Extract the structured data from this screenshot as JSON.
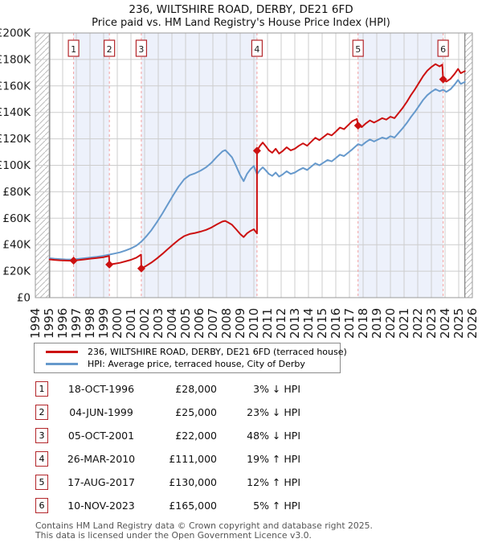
{
  "title": "236, WILTSHIRE ROAD, DERBY, DE21 6FD",
  "subtitle": "Price paid vs. HM Land Registry's House Price Index (HPI)",
  "legend": [
    {
      "label": "236, WILTSHIRE ROAD, DERBY, DE21 6FD (terraced house)",
      "color": "#cc1111"
    },
    {
      "label": "HPI: Average price, terraced house, City of Derby",
      "color": "#6699cc"
    }
  ],
  "sales": [
    {
      "n": "1",
      "date": "18-OCT-1996",
      "price": "£28,000",
      "vs_hpi": "3% ↓ HPI",
      "year": 1996.8,
      "price_k": 28
    },
    {
      "n": "2",
      "date": "04-JUN-1999",
      "price": "£25,000",
      "vs_hpi": "23% ↓ HPI",
      "year": 1999.42,
      "price_k": 25
    },
    {
      "n": "3",
      "date": "05-OCT-2001",
      "price": "£22,000",
      "vs_hpi": "48% ↓ HPI",
      "year": 2001.76,
      "price_k": 22
    },
    {
      "n": "4",
      "date": "26-MAR-2010",
      "price": "£111,000",
      "vs_hpi": "19% ↑ HPI",
      "year": 2010.23,
      "price_k": 111
    },
    {
      "n": "5",
      "date": "17-AUG-2017",
      "price": "£130,000",
      "vs_hpi": "12% ↑ HPI",
      "year": 2017.63,
      "price_k": 130
    },
    {
      "n": "6",
      "date": "10-NOV-2023",
      "price": "£165,000",
      "vs_hpi": "5% ↑ HPI",
      "year": 2023.86,
      "price_k": 165
    }
  ],
  "footer": {
    "line1": "Contains HM Land Registry data © Crown copyright and database right 2025.",
    "line2": "This data is licensed under the Open Government Licence v3.0."
  },
  "chart_data": {
    "type": "line",
    "title": "236, WILTSHIRE ROAD, DERBY, DE21 6FD",
    "subtitle": "Price paid vs. HM Land Registry's House Price Index (HPI)",
    "x_axis": {
      "min": 1994,
      "max": 2026,
      "tick_years": [
        1994,
        1995,
        1996,
        1997,
        1998,
        1999,
        2000,
        2001,
        2002,
        2003,
        2004,
        2005,
        2006,
        2007,
        2008,
        2009,
        2010,
        2011,
        2012,
        2013,
        2014,
        2015,
        2016,
        2017,
        2018,
        2019,
        2020,
        2021,
        2022,
        2023,
        2024,
        2025,
        2026
      ]
    },
    "y_axis": {
      "min_gbp": 0,
      "max_gbp": 200000,
      "tick_step_k": 20,
      "tick_labels": [
        "£0",
        "£20K",
        "£40K",
        "£60K",
        "£80K",
        "£100K",
        "£120K",
        "£140K",
        "£160K",
        "£180K",
        "£200K"
      ]
    },
    "grid": true,
    "legend_position": "below",
    "band_color": "#edf1fb",
    "grid_color": "#cdcdcd",
    "border_color": "#9a9a9a",
    "sale_line_color": "#f2a0a0",
    "sale_marker_color": "#cc1111",
    "shaded_periods": [
      [
        1996.8,
        1999.42
      ],
      [
        2001.76,
        2010.23
      ],
      [
        2017.63,
        2023.86
      ]
    ],
    "no_data_hatch": [
      [
        1994,
        1995.05
      ],
      [
        2025.45,
        2026
      ]
    ],
    "units": "points are [decimal_year, price_in_thousands_gbp]",
    "series": [
      {
        "name": "236, WILTSHIRE ROAD, DERBY, DE21 6FD (terraced house)",
        "color": "#cc1111",
        "points_year_gbp_k": [
          [
            1995.05,
            28.9
          ],
          [
            1995.4,
            28.5
          ],
          [
            1995.8,
            28.2
          ],
          [
            1996.2,
            28.0
          ],
          [
            1996.6,
            27.9
          ],
          [
            1996.8,
            28.0
          ],
          [
            1997.2,
            28.4
          ],
          [
            1997.6,
            28.9
          ],
          [
            1998.0,
            29.4
          ],
          [
            1998.5,
            29.9
          ],
          [
            1999.0,
            30.6
          ],
          [
            1999.4,
            31.5
          ],
          [
            1999.42,
            25.0
          ],
          [
            1999.8,
            25.6
          ],
          [
            2000.2,
            26.3
          ],
          [
            2000.6,
            27.4
          ],
          [
            2001.0,
            28.6
          ],
          [
            2001.4,
            30.2
          ],
          [
            2001.74,
            32.5
          ],
          [
            2001.76,
            22.0
          ],
          [
            2002.1,
            23.9
          ],
          [
            2002.5,
            26.5
          ],
          [
            2002.9,
            29.6
          ],
          [
            2003.3,
            33.0
          ],
          [
            2003.7,
            36.7
          ],
          [
            2004.1,
            40.3
          ],
          [
            2004.5,
            43.7
          ],
          [
            2004.9,
            46.5
          ],
          [
            2005.3,
            48.1
          ],
          [
            2005.7,
            48.9
          ],
          [
            2006.1,
            49.9
          ],
          [
            2006.5,
            51.2
          ],
          [
            2006.9,
            53.0
          ],
          [
            2007.3,
            55.4
          ],
          [
            2007.7,
            57.5
          ],
          [
            2007.9,
            58.0
          ],
          [
            2008.1,
            56.9
          ],
          [
            2008.4,
            55.1
          ],
          [
            2008.7,
            51.7
          ],
          [
            2009.0,
            48.1
          ],
          [
            2009.25,
            45.8
          ],
          [
            2009.5,
            48.6
          ],
          [
            2009.75,
            50.4
          ],
          [
            2010.0,
            51.7
          ],
          [
            2010.23,
            48.5
          ],
          [
            2010.23,
            111.0
          ],
          [
            2010.45,
            114.8
          ],
          [
            2010.65,
            117.2
          ],
          [
            2010.85,
            114.8
          ],
          [
            2011.1,
            111.3
          ],
          [
            2011.35,
            109.5
          ],
          [
            2011.6,
            112.5
          ],
          [
            2011.85,
            108.9
          ],
          [
            2012.1,
            110.7
          ],
          [
            2012.4,
            113.6
          ],
          [
            2012.7,
            111.3
          ],
          [
            2013.0,
            112.5
          ],
          [
            2013.3,
            114.8
          ],
          [
            2013.6,
            116.6
          ],
          [
            2013.9,
            114.8
          ],
          [
            2014.2,
            117.8
          ],
          [
            2014.5,
            120.8
          ],
          [
            2014.8,
            119.0
          ],
          [
            2015.1,
            121.4
          ],
          [
            2015.4,
            123.8
          ],
          [
            2015.7,
            122.6
          ],
          [
            2016.0,
            125.5
          ],
          [
            2016.3,
            128.5
          ],
          [
            2016.6,
            127.3
          ],
          [
            2016.9,
            130.3
          ],
          [
            2017.2,
            133.3
          ],
          [
            2017.55,
            135.0
          ],
          [
            2017.63,
            130.0
          ],
          [
            2017.9,
            128.9
          ],
          [
            2018.2,
            131.7
          ],
          [
            2018.5,
            133.9
          ],
          [
            2018.8,
            132.3
          ],
          [
            2019.1,
            133.9
          ],
          [
            2019.4,
            135.6
          ],
          [
            2019.7,
            134.5
          ],
          [
            2020.0,
            136.7
          ],
          [
            2020.3,
            135.6
          ],
          [
            2020.6,
            139.5
          ],
          [
            2020.9,
            143.4
          ],
          [
            2021.2,
            147.9
          ],
          [
            2021.5,
            153.0
          ],
          [
            2021.8,
            157.5
          ],
          [
            2022.1,
            162.5
          ],
          [
            2022.4,
            167.5
          ],
          [
            2022.7,
            171.5
          ],
          [
            2023.0,
            174.3
          ],
          [
            2023.3,
            176.5
          ],
          [
            2023.6,
            174.8
          ],
          [
            2023.8,
            176.1
          ],
          [
            2023.86,
            165.0
          ],
          [
            2024.1,
            163.3
          ],
          [
            2024.4,
            165.4
          ],
          [
            2024.7,
            169.1
          ],
          [
            2024.95,
            172.8
          ],
          [
            2025.15,
            169.6
          ],
          [
            2025.45,
            171.2
          ]
        ]
      },
      {
        "name": "HPI: Average price, terraced house, City of Derby",
        "color": "#6699cc",
        "points_year_gbp_k": [
          [
            1995.05,
            29.8
          ],
          [
            1995.4,
            29.4
          ],
          [
            1995.8,
            29.1
          ],
          [
            1996.2,
            28.9
          ],
          [
            1996.6,
            28.8
          ],
          [
            1996.8,
            28.9
          ],
          [
            1997.2,
            29.3
          ],
          [
            1997.6,
            29.8
          ],
          [
            1998.0,
            30.3
          ],
          [
            1998.5,
            30.9
          ],
          [
            1999.0,
            31.6
          ],
          [
            1999.42,
            32.5
          ],
          [
            1999.8,
            33.3
          ],
          [
            2000.2,
            34.2
          ],
          [
            2000.6,
            35.6
          ],
          [
            2001.0,
            37.2
          ],
          [
            2001.4,
            39.3
          ],
          [
            2001.76,
            42.3
          ],
          [
            2002.1,
            46.0
          ],
          [
            2002.5,
            51.0
          ],
          [
            2002.9,
            57.0
          ],
          [
            2003.3,
            63.5
          ],
          [
            2003.7,
            70.5
          ],
          [
            2004.1,
            77.5
          ],
          [
            2004.5,
            84.0
          ],
          [
            2004.9,
            89.5
          ],
          [
            2005.3,
            92.5
          ],
          [
            2005.7,
            94.0
          ],
          [
            2006.1,
            96.0
          ],
          [
            2006.5,
            98.5
          ],
          [
            2006.9,
            102.0
          ],
          [
            2007.3,
            106.5
          ],
          [
            2007.7,
            110.5
          ],
          [
            2007.9,
            111.5
          ],
          [
            2008.1,
            109.5
          ],
          [
            2008.4,
            106.0
          ],
          [
            2008.7,
            99.5
          ],
          [
            2009.0,
            92.5
          ],
          [
            2009.25,
            88.0
          ],
          [
            2009.5,
            93.5
          ],
          [
            2009.75,
            97.0
          ],
          [
            2010.0,
            99.5
          ],
          [
            2010.23,
            93.3
          ],
          [
            2010.45,
            96.5
          ],
          [
            2010.65,
            98.5
          ],
          [
            2010.85,
            96.5
          ],
          [
            2011.1,
            93.5
          ],
          [
            2011.35,
            92.0
          ],
          [
            2011.6,
            94.5
          ],
          [
            2011.85,
            91.5
          ],
          [
            2012.1,
            93.0
          ],
          [
            2012.4,
            95.5
          ],
          [
            2012.7,
            93.5
          ],
          [
            2013.0,
            94.5
          ],
          [
            2013.3,
            96.5
          ],
          [
            2013.6,
            98.0
          ],
          [
            2013.9,
            96.5
          ],
          [
            2014.2,
            99.0
          ],
          [
            2014.5,
            101.5
          ],
          [
            2014.8,
            100.0
          ],
          [
            2015.1,
            102.0
          ],
          [
            2015.4,
            104.0
          ],
          [
            2015.7,
            103.0
          ],
          [
            2016.0,
            105.5
          ],
          [
            2016.3,
            108.0
          ],
          [
            2016.6,
            107.0
          ],
          [
            2016.9,
            109.5
          ],
          [
            2017.2,
            112.0
          ],
          [
            2017.63,
            116.0
          ],
          [
            2017.9,
            115.0
          ],
          [
            2018.2,
            117.5
          ],
          [
            2018.5,
            119.5
          ],
          [
            2018.8,
            118.0
          ],
          [
            2019.1,
            119.5
          ],
          [
            2019.4,
            121.0
          ],
          [
            2019.7,
            120.0
          ],
          [
            2020.0,
            122.0
          ],
          [
            2020.3,
            121.0
          ],
          [
            2020.6,
            124.5
          ],
          [
            2020.9,
            128.0
          ],
          [
            2021.2,
            132.0
          ],
          [
            2021.5,
            136.5
          ],
          [
            2021.8,
            140.5
          ],
          [
            2022.1,
            145.0
          ],
          [
            2022.4,
            149.5
          ],
          [
            2022.7,
            153.0
          ],
          [
            2023.0,
            155.5
          ],
          [
            2023.3,
            157.5
          ],
          [
            2023.6,
            156.0
          ],
          [
            2023.86,
            157.1
          ],
          [
            2024.1,
            155.5
          ],
          [
            2024.4,
            157.5
          ],
          [
            2024.7,
            161.0
          ],
          [
            2024.95,
            164.5
          ],
          [
            2025.15,
            161.5
          ],
          [
            2025.45,
            163.0
          ]
        ]
      }
    ]
  }
}
